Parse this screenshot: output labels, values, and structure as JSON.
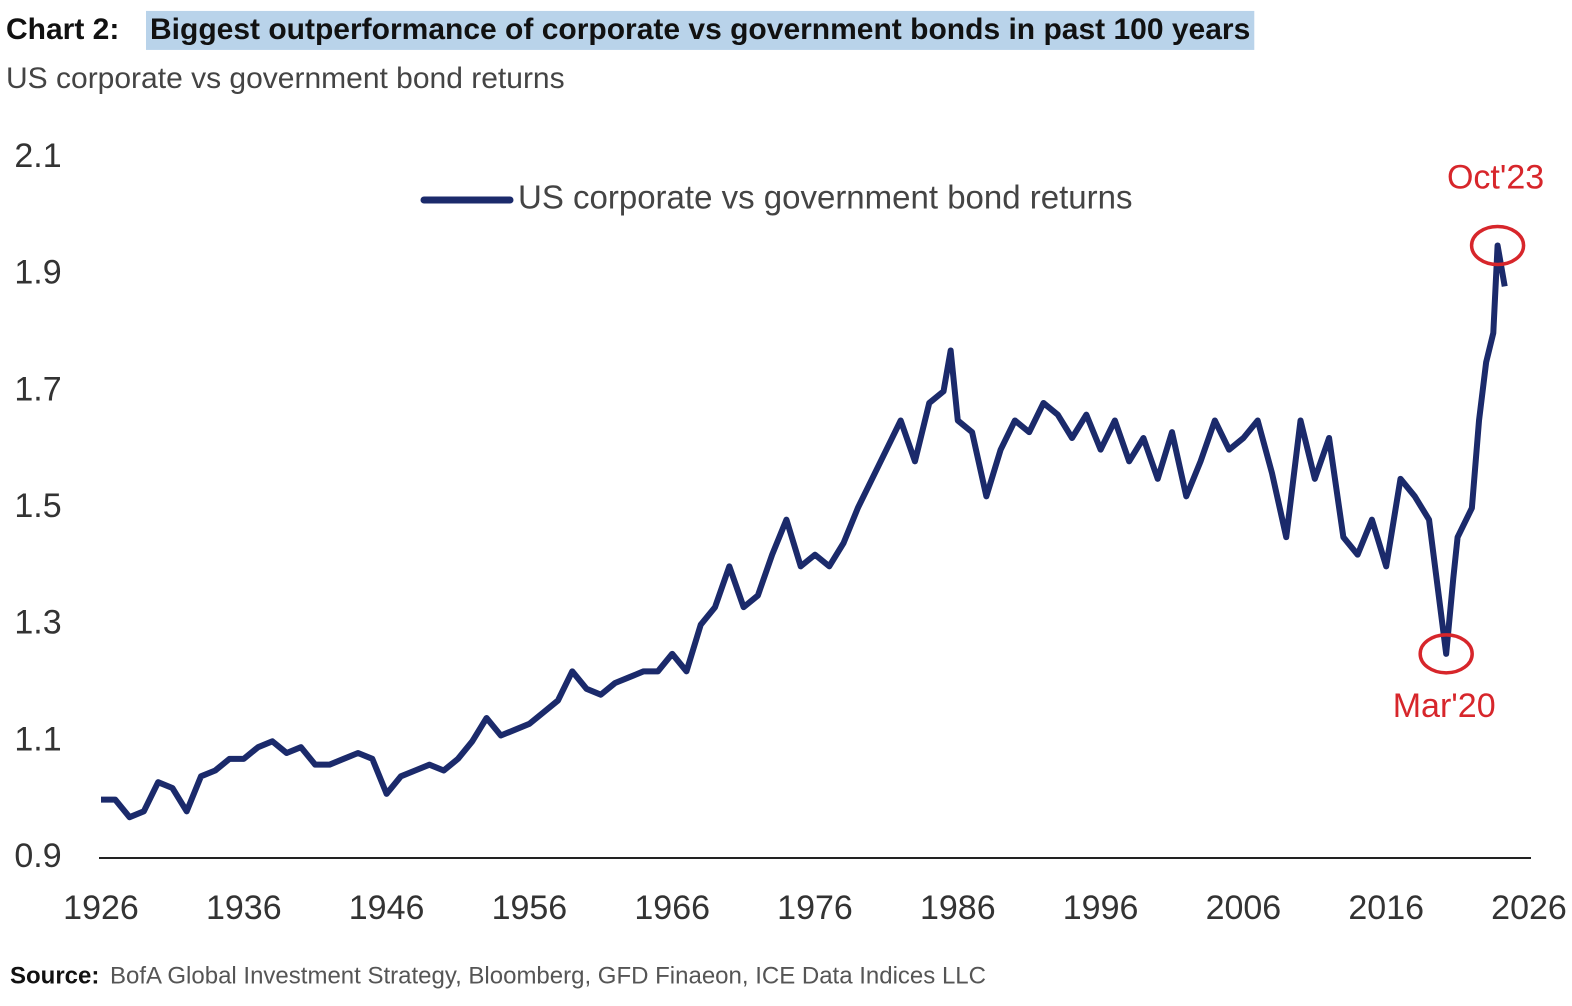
{
  "chart_data": {
    "type": "line",
    "chart_label": "Chart 2:",
    "title": "Biggest outperformance of corporate  vs government bonds in past 100 years",
    "subtitle": "US corporate vs government bond returns",
    "source_label": "Source:",
    "source": "BofA Global Investment Strategy, Bloomberg, GFD Finaeon,  ICE Data Indices LLC",
    "x": [
      1926,
      1927,
      1928,
      1929,
      1930,
      1931,
      1932,
      1933,
      1934,
      1935,
      1936,
      1937,
      1938,
      1939,
      1940,
      1941,
      1942,
      1943,
      1944,
      1945,
      1946,
      1947,
      1948,
      1949,
      1950,
      1951,
      1952,
      1953,
      1954,
      1955,
      1956,
      1957,
      1958,
      1959,
      1960,
      1961,
      1962,
      1963,
      1964,
      1965,
      1966,
      1967,
      1968,
      1969,
      1970,
      1971,
      1972,
      1973,
      1974,
      1975,
      1976,
      1977,
      1978,
      1979,
      1980,
      1981,
      1982,
      1983,
      1984,
      1985,
      1985.5,
      1986,
      1987,
      1988,
      1989,
      1990,
      1991,
      1992,
      1993,
      1994,
      1995,
      1996,
      1997,
      1998,
      1999,
      2000,
      2001,
      2002,
      2003,
      2004,
      2005,
      2006,
      2007,
      2008,
      2009,
      2010,
      2011,
      2012,
      2013,
      2014,
      2015,
      2016,
      2017,
      2018,
      2019,
      2020.2,
      2020.7,
      2021,
      2022,
      2022.5,
      2023,
      2023.5,
      2023.8,
      2024.3
    ],
    "series": [
      {
        "name": "US corporate vs government bond returns",
        "color": "#1b2a6b",
        "values": [
          1.0,
          1.0,
          0.97,
          0.98,
          1.03,
          1.02,
          0.98,
          1.04,
          1.05,
          1.07,
          1.07,
          1.09,
          1.1,
          1.08,
          1.09,
          1.06,
          1.06,
          1.07,
          1.08,
          1.07,
          1.01,
          1.04,
          1.05,
          1.06,
          1.05,
          1.07,
          1.1,
          1.14,
          1.11,
          1.12,
          1.13,
          1.15,
          1.17,
          1.22,
          1.19,
          1.18,
          1.2,
          1.21,
          1.22,
          1.22,
          1.25,
          1.22,
          1.3,
          1.33,
          1.4,
          1.33,
          1.35,
          1.42,
          1.48,
          1.4,
          1.42,
          1.4,
          1.44,
          1.5,
          1.55,
          1.6,
          1.65,
          1.58,
          1.68,
          1.7,
          1.77,
          1.65,
          1.63,
          1.52,
          1.6,
          1.65,
          1.63,
          1.68,
          1.66,
          1.62,
          1.66,
          1.6,
          1.65,
          1.58,
          1.62,
          1.55,
          1.63,
          1.52,
          1.58,
          1.65,
          1.6,
          1.62,
          1.65,
          1.56,
          1.45,
          1.65,
          1.55,
          1.62,
          1.45,
          1.42,
          1.48,
          1.4,
          1.55,
          1.52,
          1.48,
          1.25,
          1.38,
          1.45,
          1.5,
          1.65,
          1.75,
          1.8,
          1.95,
          1.88
        ]
      }
    ],
    "annotations": [
      {
        "text": "Oct'23",
        "x": 2023.8,
        "y": 1.95,
        "color": "#d7262b"
      },
      {
        "text": "Mar'20",
        "x": 2020.2,
        "y": 1.25,
        "color": "#d7262b"
      }
    ],
    "xlim": [
      1926,
      2026
    ],
    "xticks": [
      1926,
      1936,
      1946,
      1956,
      1966,
      1976,
      1986,
      1996,
      2006,
      2016,
      2026
    ],
    "ylim": [
      0.9,
      2.1
    ],
    "yticks": [
      0.9,
      1.1,
      1.3,
      1.5,
      1.7,
      1.9,
      2.1
    ],
    "grid": false
  }
}
